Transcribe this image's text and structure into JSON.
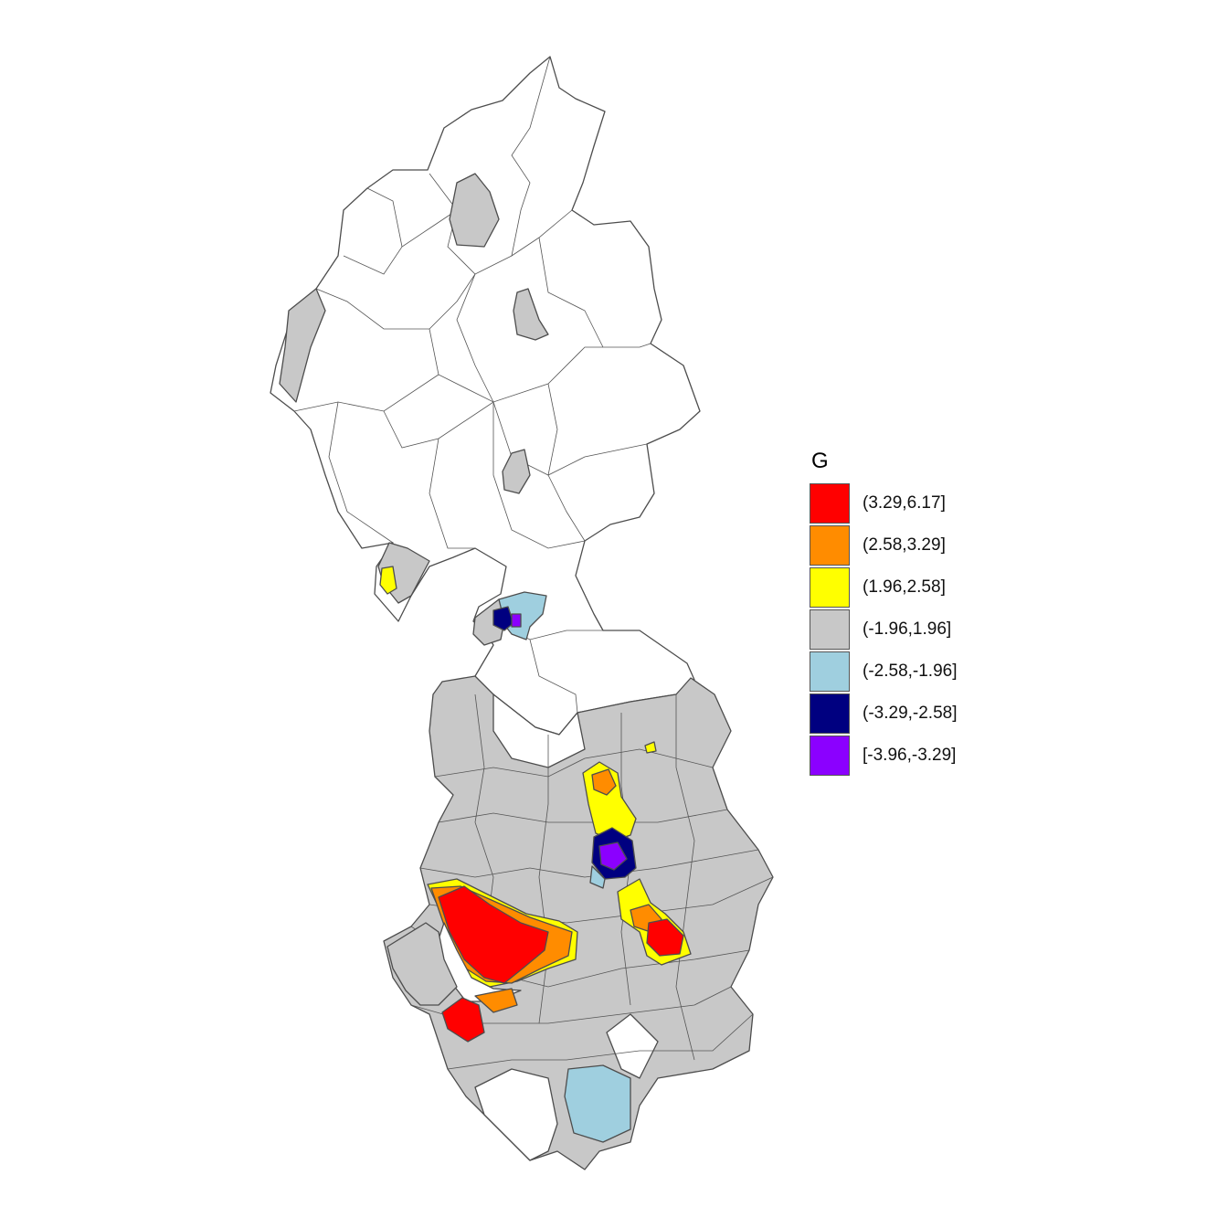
{
  "legend": {
    "title": "G",
    "classes": [
      {
        "label": "(3.29,6.17]",
        "color": "#ff0000"
      },
      {
        "label": "(2.58,3.29]",
        "color": "#ff8c00"
      },
      {
        "label": "(1.96,2.58]",
        "color": "#ffff00"
      },
      {
        "label": "(-1.96,1.96]",
        "color": "#c8c8c8"
      },
      {
        "label": "(-2.58,-1.96]",
        "color": "#9fcfdf"
      },
      {
        "label": "(-3.29,-2.58]",
        "color": "#000080"
      },
      {
        "label": "[-3.96,-3.29]",
        "color": "#8b00ff"
      }
    ]
  }
}
